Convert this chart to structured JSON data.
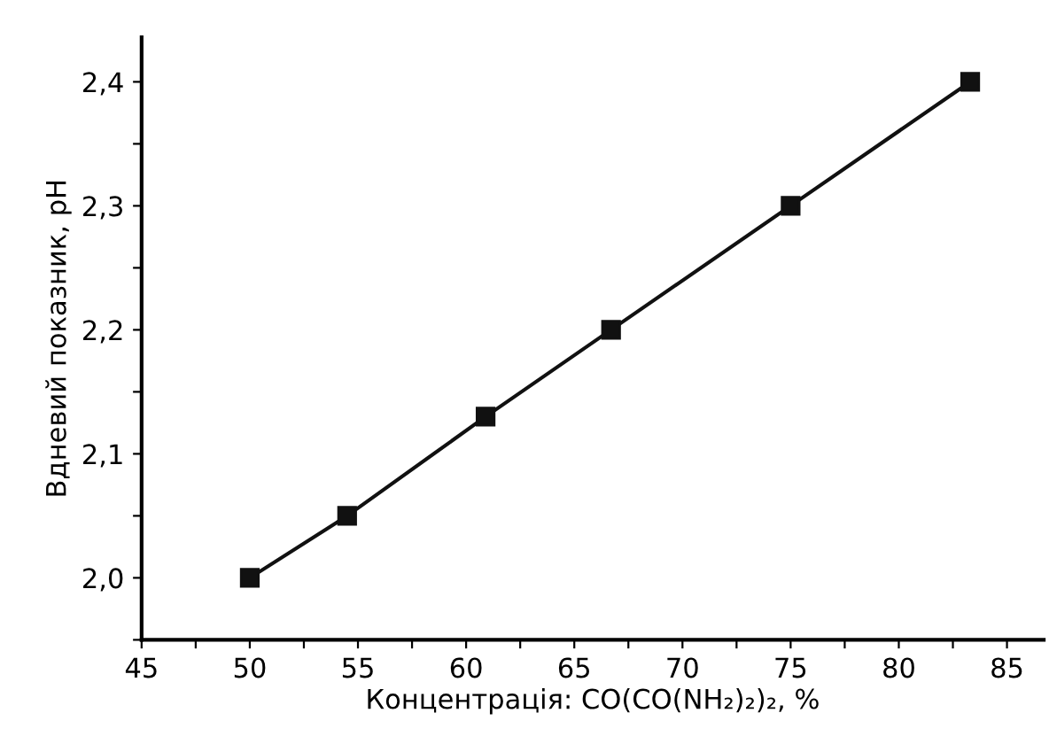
{
  "chart_data": {
    "type": "line",
    "xlabel": "Концентрація: CO(CO(NH₂)₂)₂, %",
    "ylabel": "Вдневий показник, pH",
    "x": [
      50,
      54.5,
      60.9,
      66.7,
      75,
      83.3
    ],
    "series": [
      {
        "color": "#111111",
        "values": [
          2.0,
          2.05,
          2.13,
          2.2,
          2.3,
          2.4
        ]
      }
    ],
    "marker": "square",
    "line_style": "solid",
    "grid": false,
    "legend": false,
    "xlim": [
      45,
      86.7
    ],
    "ylim": [
      1.95,
      2.436
    ],
    "xticks": [
      45,
      {
        "value": 47.5,
        "label": null
      },
      50,
      {
        "value": 52.5,
        "label": null
      },
      55,
      {
        "value": 57.5,
        "label": null
      },
      60,
      {
        "value": 62.5,
        "label": null
      },
      65,
      {
        "value": 67.5,
        "label": null
      },
      70,
      {
        "value": 72.5,
        "label": null
      },
      75,
      {
        "value": 77.5,
        "label": null
      },
      80,
      {
        "value": 82.5,
        "label": null
      },
      85
    ],
    "yticks": [
      {
        "value": 1.95,
        "label": null
      },
      {
        "value": 2.0,
        "label": "2,0"
      },
      {
        "value": 2.05,
        "label": null
      },
      {
        "value": 2.1,
        "label": "2,1"
      },
      {
        "value": 2.15,
        "label": null
      },
      {
        "value": 2.2,
        "label": "2,2"
      },
      {
        "value": 2.25,
        "label": null
      },
      {
        "value": 2.3,
        "label": "2,3"
      },
      {
        "value": 2.35,
        "label": null
      },
      {
        "value": 2.4,
        "label": "2,4"
      }
    ]
  }
}
